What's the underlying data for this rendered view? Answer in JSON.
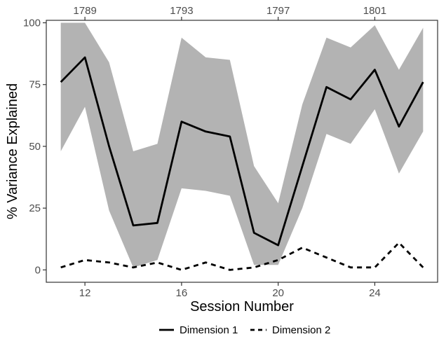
{
  "chart_data": {
    "type": "line",
    "xlabel": "Session Number",
    "ylabel": "% Variance Explained",
    "xlim": [
      10.4,
      26.6
    ],
    "ylim": [
      -5,
      101
    ],
    "x_ticks": [
      12,
      16,
      20,
      24
    ],
    "y_ticks": [
      0,
      25,
      50,
      75,
      100
    ],
    "top_axis": {
      "positions": [
        12,
        16,
        20,
        24
      ],
      "labels": [
        "1789",
        "1793",
        "1797",
        "1801"
      ]
    },
    "x": [
      11,
      12,
      13,
      14,
      15,
      16,
      17,
      18,
      19,
      20,
      21,
      22,
      23,
      24,
      25,
      26
    ],
    "series": [
      {
        "name": "Dimension 1",
        "line_style": "solid",
        "values": [
          76,
          86,
          50,
          18,
          19,
          60,
          56,
          54,
          15,
          10,
          42,
          74,
          69,
          81,
          58,
          76
        ],
        "band_lower": [
          48,
          66,
          24,
          1,
          4,
          33,
          32,
          30,
          2,
          2,
          25,
          55,
          51,
          65,
          39,
          56
        ],
        "band_upper": [
          100,
          100,
          84,
          48,
          51,
          94,
          86,
          85,
          42,
          27,
          67,
          94,
          90,
          99,
          81,
          98
        ]
      },
      {
        "name": "Dimension 2",
        "line_style": "dashed",
        "values": [
          1,
          4,
          3,
          1,
          3,
          0,
          3,
          0,
          1,
          4,
          9,
          5,
          1,
          1,
          11,
          1
        ]
      }
    ],
    "legend_position": "bottom",
    "grid": false,
    "colors": {
      "band": "#b3b3b3",
      "line": "#000000",
      "tick_label": "#4d4d4d"
    }
  }
}
